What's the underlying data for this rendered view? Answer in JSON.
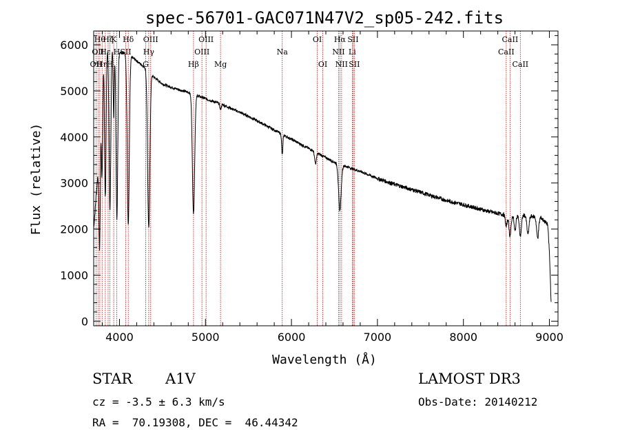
{
  "chart_data": {
    "type": "line",
    "title": "spec-56701-GAC071N47V2_sp05-242.fits",
    "xlabel": "Wavelength (Å)",
    "ylabel": "Flux (relative)",
    "xlim": [
      3700,
      9100
    ],
    "ylim": [
      -100,
      6300
    ],
    "x_ticks": [
      4000,
      5000,
      6000,
      7000,
      8000,
      9000
    ],
    "y_ticks": [
      0,
      1000,
      2000,
      3000,
      4000,
      5000,
      6000
    ],
    "grid": false,
    "continuum": [
      [
        3700,
        2000
      ],
      [
        3760,
        3500
      ],
      [
        3800,
        5900
      ],
      [
        3900,
        5950
      ],
      [
        4000,
        5850
      ],
      [
        4100,
        5800
      ],
      [
        4200,
        5650
      ],
      [
        4300,
        5500
      ],
      [
        4400,
        5300
      ],
      [
        4500,
        5150
      ],
      [
        4600,
        5080
      ],
      [
        4700,
        5020
      ],
      [
        4800,
        4970
      ],
      [
        5000,
        4830
      ],
      [
        5200,
        4700
      ],
      [
        5500,
        4450
      ],
      [
        5800,
        4150
      ],
      [
        6000,
        3950
      ],
      [
        6300,
        3650
      ],
      [
        6500,
        3450
      ],
      [
        6800,
        3250
      ],
      [
        7000,
        3100
      ],
      [
        7200,
        2970
      ],
      [
        7500,
        2800
      ],
      [
        7800,
        2620
      ],
      [
        8000,
        2530
      ],
      [
        8300,
        2380
      ],
      [
        8500,
        2300
      ],
      [
        8700,
        2300
      ],
      [
        8900,
        2250
      ],
      [
        8980,
        2100
      ],
      [
        9000,
        1500
      ],
      [
        9020,
        400
      ]
    ],
    "absorption": [
      {
        "center": 3770,
        "depth": 2500,
        "width": 8
      },
      {
        "center": 3798,
        "depth": 2600,
        "width": 8
      },
      {
        "center": 3835,
        "depth": 3200,
        "width": 9
      },
      {
        "center": 3889,
        "depth": 3600,
        "width": 10
      },
      {
        "center": 3933,
        "depth": 1500,
        "width": 6
      },
      {
        "center": 3970,
        "depth": 3700,
        "width": 10
      },
      {
        "center": 4102,
        "depth": 3700,
        "width": 12
      },
      {
        "center": 4340,
        "depth": 3400,
        "width": 13
      },
      {
        "center": 4861,
        "depth": 2600,
        "width": 13
      },
      {
        "center": 5175,
        "depth": 120,
        "width": 8
      },
      {
        "center": 5893,
        "depth": 450,
        "width": 7
      },
      {
        "center": 6280,
        "depth": 250,
        "width": 10
      },
      {
        "center": 6563,
        "depth": 1000,
        "width": 15
      },
      {
        "center": 8498,
        "depth": 250,
        "width": 10
      },
      {
        "center": 8542,
        "depth": 450,
        "width": 12
      },
      {
        "center": 8600,
        "depth": 350,
        "width": 10
      },
      {
        "center": 8662,
        "depth": 450,
        "width": 12
      },
      {
        "center": 8750,
        "depth": 400,
        "width": 12
      },
      {
        "center": 8863,
        "depth": 450,
        "width": 12
      }
    ],
    "line_markers": [
      {
        "wavelength": 3727,
        "label": "OII",
        "row": 2
      },
      {
        "wavelength": 3750,
        "label": "OII",
        "row": 1
      },
      {
        "wavelength": 3771,
        "label": "Hθ",
        "row": 0
      },
      {
        "wavelength": 3798,
        "label": "Hη",
        "row": 2
      },
      {
        "wavelength": 3835,
        "label": "Hε",
        "row": 1
      },
      {
        "wavelength": 3868,
        "label": "Hζ",
        "row": 0
      },
      {
        "wavelength": 3889,
        "label": "H",
        "row": 2
      },
      {
        "wavelength": 3933,
        "label": "K",
        "row": 0
      },
      {
        "wavelength": 3968,
        "label": "H",
        "row": 1
      },
      {
        "wavelength": 4072,
        "label": "SII",
        "row": 1
      },
      {
        "wavelength": 4102,
        "label": "Hδ",
        "row": 0
      },
      {
        "wavelength": 4305,
        "label": "G",
        "row": 2
      },
      {
        "wavelength": 4340,
        "label": "Hγ",
        "row": 1
      },
      {
        "wavelength": 4363,
        "label": "OIII",
        "row": 0
      },
      {
        "wavelength": 4861,
        "label": "Hβ",
        "row": 2
      },
      {
        "wavelength": 4959,
        "label": "OIII",
        "row": 1
      },
      {
        "wavelength": 5007,
        "label": "OIII",
        "row": 0
      },
      {
        "wavelength": 5175,
        "label": "Mg",
        "row": 2
      },
      {
        "wavelength": 5893,
        "label": "Na",
        "row": 1
      },
      {
        "wavelength": 6300,
        "label": "OI",
        "row": 0
      },
      {
        "wavelength": 6364,
        "label": "OI",
        "row": 2
      },
      {
        "wavelength": 6548,
        "label": "NII",
        "row": 1
      },
      {
        "wavelength": 6563,
        "label": "Hα",
        "row": 0
      },
      {
        "wavelength": 6583,
        "label": "NII",
        "row": 2
      },
      {
        "wavelength": 6707,
        "label": "Li",
        "row": 1
      },
      {
        "wavelength": 6716,
        "label": "SII",
        "row": 0
      },
      {
        "wavelength": 6731,
        "label": "SII",
        "row": 2
      },
      {
        "wavelength": 8498,
        "label": "CaII",
        "row": 1
      },
      {
        "wavelength": 8542,
        "label": "CaII",
        "row": 0
      },
      {
        "wavelength": 8662,
        "label": "CaII",
        "row": 2
      }
    ]
  },
  "info": {
    "object_type": "STAR",
    "subclass": "A1V",
    "survey": "LAMOST DR3",
    "redshift_text": "cz = -3.5 ± 6.3 km/s",
    "obs_date_text": "Obs-Date: 20140212",
    "coords_text": "RA =  70.19308, DEC =  46.44342"
  },
  "colors": {
    "spectrum": "#000000",
    "marker": "#cc0000",
    "axes": "#000000"
  }
}
